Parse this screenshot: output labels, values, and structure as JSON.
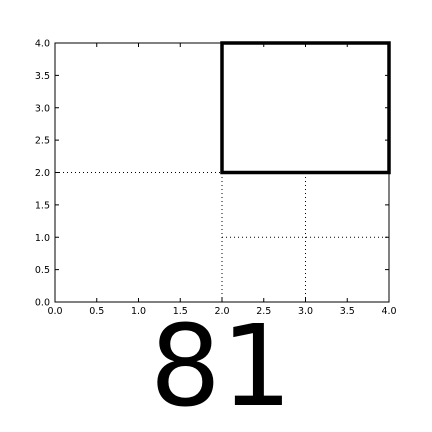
{
  "figure": {
    "number_label": "81"
  },
  "plot": {
    "xlim": [
      0,
      4
    ],
    "ylim": [
      0,
      4
    ],
    "x_ticks": [
      0,
      0.5,
      1,
      1.5,
      2,
      2.5,
      3,
      3.5,
      4
    ],
    "x_tick_labels": [
      "0.0",
      "0.5",
      "1.0",
      "1.5",
      "2.0",
      "2.5",
      "3.0",
      "3.5",
      "4.0"
    ],
    "y_ticks": [
      0,
      0.5,
      1,
      1.5,
      2,
      2.5,
      3,
      3.5,
      4
    ],
    "y_tick_labels": [
      "0.0",
      "0.5",
      "1.0",
      "1.5",
      "2.0",
      "2.5",
      "3.0",
      "3.5",
      "4.0"
    ],
    "grid": false,
    "dotted_lines": [
      {
        "x": [
          0,
          2
        ],
        "y": [
          2,
          2
        ]
      },
      {
        "x": [
          2,
          2
        ],
        "y": [
          0,
          2
        ]
      },
      {
        "x": [
          2,
          4
        ],
        "y": [
          1,
          1
        ]
      },
      {
        "x": [
          3,
          3
        ],
        "y": [
          0,
          2
        ]
      }
    ],
    "highlight_square": {
      "x0": 2,
      "y0": 2,
      "x1": 4,
      "y1": 4
    },
    "colors": {
      "lines": "#000000",
      "background": "#ffffff"
    }
  }
}
